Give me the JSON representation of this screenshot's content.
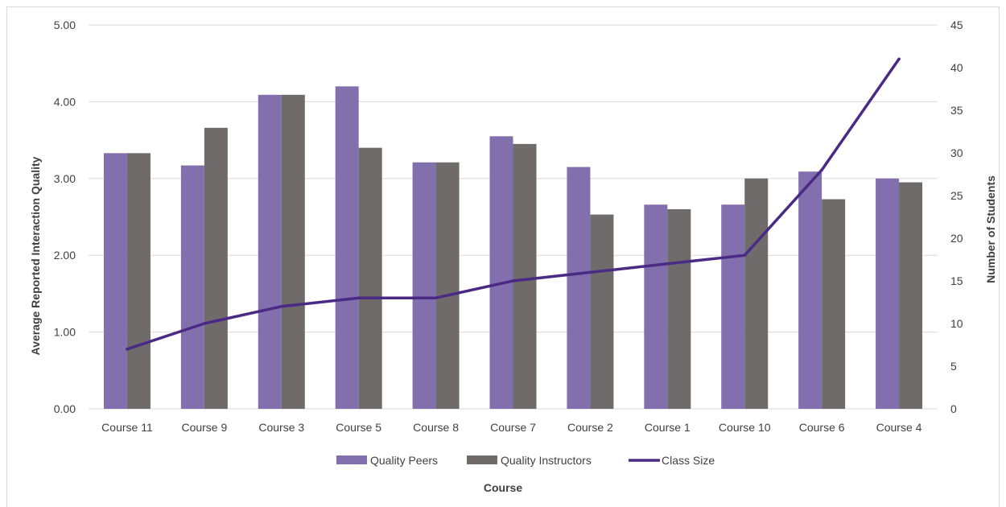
{
  "chart_data": {
    "type": "bar",
    "categories": [
      "Course 11",
      "Course 9",
      "Course 3",
      "Course 5",
      "Course 8",
      "Course 7",
      "Course 2",
      "Course 1",
      "Course 10",
      "Course 6",
      "Course 4"
    ],
    "series": [
      {
        "name": "Quality Peers",
        "kind": "bar",
        "axis": "left",
        "color": "#8270ae",
        "values": [
          3.33,
          3.17,
          4.09,
          4.2,
          3.21,
          3.55,
          3.15,
          2.66,
          2.66,
          3.09,
          3.0
        ]
      },
      {
        "name": "Quality Instructors",
        "kind": "bar",
        "axis": "left",
        "color": "#6f6b6b",
        "values": [
          3.33,
          3.66,
          4.09,
          3.4,
          3.21,
          3.45,
          2.53,
          2.6,
          3.0,
          2.73,
          2.95
        ]
      },
      {
        "name": "Class Size",
        "kind": "line",
        "axis": "right",
        "color": "#4b2a85",
        "values": [
          7,
          10,
          12,
          13,
          13,
          15,
          16,
          17,
          18,
          28,
          41
        ]
      }
    ],
    "xlabel": "Course",
    "ylabel": "Average Reported Interaction Quality",
    "y2label": "Number of Students",
    "ylim": [
      0,
      5
    ],
    "y2lim": [
      0,
      45
    ],
    "yticks": [
      "0.00",
      "1.00",
      "2.00",
      "3.00",
      "4.00",
      "5.00"
    ],
    "y2ticks": [
      "0",
      "5",
      "10",
      "15",
      "20",
      "25",
      "30",
      "35",
      "40",
      "45"
    ],
    "grid": true,
    "legend_position": "bottom"
  }
}
